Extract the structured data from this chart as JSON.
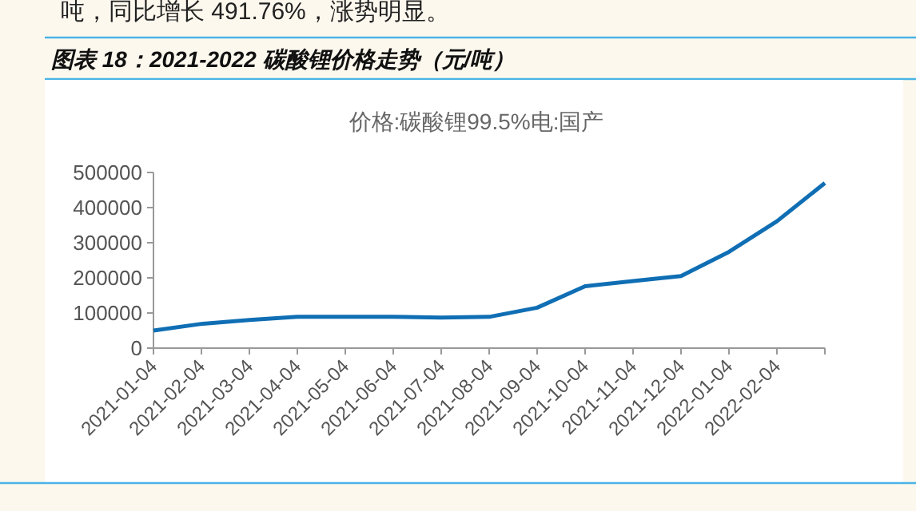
{
  "chart_data": {
    "type": "line",
    "title": "图表 18：2021-2022 碳酸锂价格走势（元/吨）",
    "subtitle": "价格:碳酸锂99.5%电:国产",
    "annotations": [
      "吨，同比增长 491.76%，涨势明显。"
    ],
    "categories": [
      "2021-01-04",
      "2021-02-04",
      "2021-03-04",
      "2021-04-04",
      "2021-05-04",
      "2021-06-04",
      "2021-07-04",
      "2021-08-04",
      "2021-09-04",
      "2021-10-04",
      "2021-11-04",
      "2021-12-04",
      "2022-01-04",
      "2022-02-04",
      null
    ],
    "series": [
      {
        "color": "#0f6eb4",
        "values": [
          50000,
          69000,
          80000,
          89000,
          89000,
          89000,
          87000,
          89000,
          115000,
          176000,
          191000,
          205000,
          274000,
          361000,
          470000
        ]
      }
    ],
    "ylim": [
      0,
      500000
    ],
    "yticks": [
      0,
      100000,
      200000,
      300000,
      400000,
      500000
    ]
  }
}
